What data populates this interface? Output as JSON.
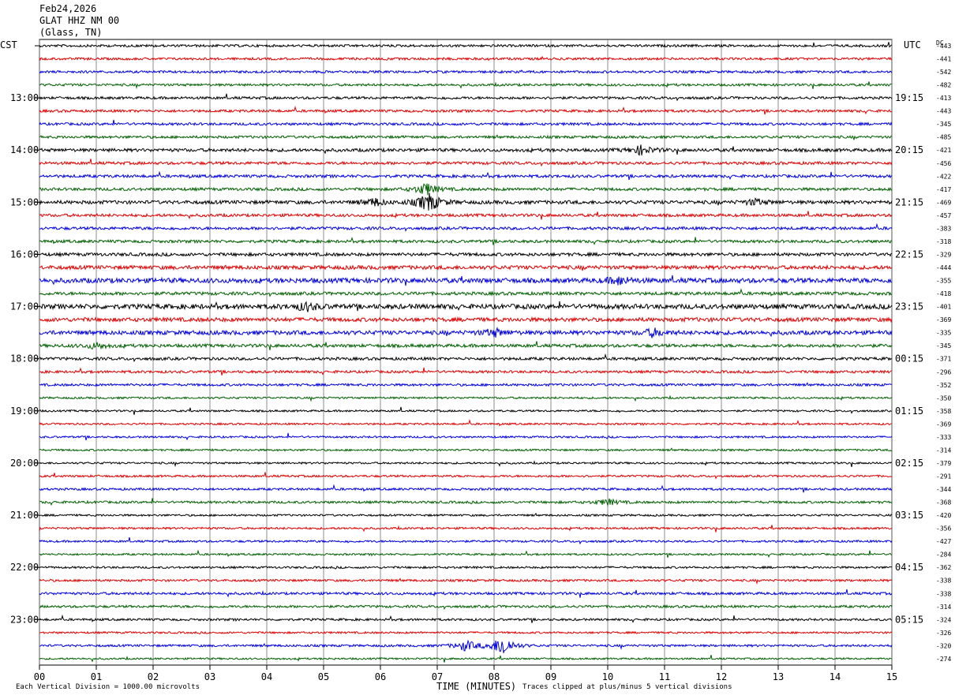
{
  "header": {
    "date": "Feb24,2026",
    "station": "GLAT HHZ NM 00",
    "location": "(Glass, TN)"
  },
  "axes": {
    "left_tz": "CST",
    "right_tz": "UTC",
    "dc_label": "DC",
    "x_title": "TIME (MINUTES)"
  },
  "footer": {
    "scale_note": "Each Vertical Division = 1000.00 microvolts",
    "clip_note": "Traces clipped at plus/minus 5 vertical divisions"
  },
  "chart_data": {
    "type": "line",
    "title": "Feb24,2026 GLAT HHZ NM 00 (Glass, TN)",
    "xlabel": "TIME (MINUTES)",
    "xlim": [
      0,
      15
    ],
    "x_ticks": [
      "00",
      "01",
      "02",
      "03",
      "04",
      "05",
      "06",
      "07",
      "08",
      "09",
      "10",
      "11",
      "12",
      "13",
      "14",
      "15"
    ],
    "grid": true,
    "trace_colors": [
      "#000000",
      "#e00000",
      "#0000e0",
      "#006000"
    ],
    "left_hour_labels": [
      "13:00",
      "14:00",
      "15:00",
      "16:00",
      "17:00",
      "18:00",
      "19:00",
      "20:00",
      "21:00",
      "22:00",
      "23:00"
    ],
    "right_hour_labels": [
      "19:15",
      "20:15",
      "21:15",
      "22:15",
      "23:15",
      "00:15",
      "01:15",
      "02:15",
      "03:15",
      "04:15",
      "05:15"
    ],
    "dc_offsets": [
      -443,
      -441,
      -542,
      -482,
      -413,
      -443,
      -345,
      -485,
      -421,
      -456,
      -422,
      -417,
      -469,
      -457,
      -383,
      -318,
      -329,
      -444,
      -355,
      -418,
      -401,
      -369,
      -335,
      -345,
      -371,
      -296,
      -352,
      -350,
      -358,
      -369,
      -333,
      -314,
      -379,
      -291,
      -344,
      -368,
      -420,
      -356,
      -427,
      -284,
      -362,
      -338,
      -338,
      -314,
      -324,
      -326,
      -320,
      -274
    ],
    "noise_level": [
      1.5,
      1.5,
      1.5,
      1.5,
      1.6,
      1.6,
      1.6,
      1.6,
      2,
      1.8,
      1.8,
      1.8,
      2.2,
      1.8,
      1.8,
      1.8,
      2,
      2.4,
      3,
      2,
      3,
      2.5,
      2.6,
      2,
      1.8,
      1.6,
      1.5,
      1.2,
      1.2,
      1.2,
      1.2,
      1.2,
      1.2,
      1.3,
      1.4,
      1.5,
      1.2,
      1.3,
      1.3,
      1.2,
      1.3,
      1.4,
      1.6,
      1.5,
      1.4,
      1.2,
      1.4,
      1.1
    ],
    "events": [
      {
        "trace": 8,
        "minute": 10.6,
        "amp": 6
      },
      {
        "trace": 11,
        "minute": 6.8,
        "amp": 8
      },
      {
        "trace": 12,
        "minute": 6.85,
        "amp": 14
      },
      {
        "trace": 12,
        "minute": 5.9,
        "amp": 5
      },
      {
        "trace": 12,
        "minute": 12.6,
        "amp": 4
      },
      {
        "trace": 18,
        "minute": 10.2,
        "amp": 5
      },
      {
        "trace": 20,
        "minute": 4.7,
        "amp": 5
      },
      {
        "trace": 22,
        "minute": 8.0,
        "amp": 5
      },
      {
        "trace": 22,
        "minute": 10.8,
        "amp": 5
      },
      {
        "trace": 23,
        "minute": 1.0,
        "amp": 4
      },
      {
        "trace": 35,
        "minute": 10.0,
        "amp": 4
      },
      {
        "trace": 46,
        "minute": 8.15,
        "amp": 14
      },
      {
        "trace": 46,
        "minute": 7.5,
        "amp": 7
      }
    ]
  }
}
